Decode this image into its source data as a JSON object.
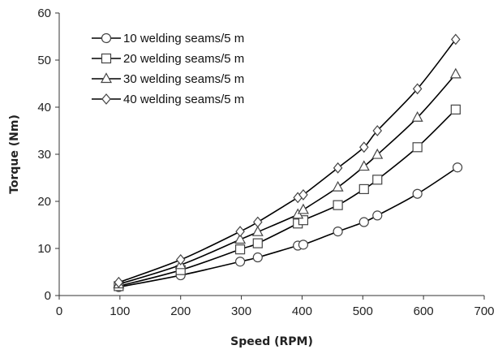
{
  "chart_data": {
    "type": "line",
    "title": "",
    "xlabel": "Speed (RPM)",
    "ylabel": "Torque (Nm)",
    "xlim": [
      0,
      700
    ],
    "ylim": [
      0,
      60
    ],
    "xticks": [
      "0",
      "100",
      "200",
      "300",
      "400",
      "500",
      "600",
      "700"
    ],
    "yticks": [
      "0",
      "10",
      "20",
      "30",
      "40",
      "50",
      "60"
    ],
    "grid": false,
    "legend_position": "top-left",
    "series": [
      {
        "name": "10 welding seams/5 m",
        "marker": "circle",
        "x": [
          98,
          200,
          298,
          327,
          393,
          402,
          459,
          502,
          524,
          590,
          656
        ],
        "y": [
          1.8,
          4.3,
          7.2,
          8.1,
          10.6,
          10.8,
          13.6,
          15.6,
          17.0,
          21.6,
          27.2
        ]
      },
      {
        "name": "20 welding seams/5 m",
        "marker": "square",
        "x": [
          98,
          200,
          298,
          327,
          393,
          402,
          459,
          502,
          524,
          590,
          653
        ],
        "y": [
          2.0,
          5.4,
          9.8,
          11.1,
          15.3,
          16.0,
          19.2,
          22.6,
          24.6,
          31.5,
          39.5
        ]
      },
      {
        "name": "30 welding seams/5 m",
        "marker": "triangle",
        "x": [
          98,
          200,
          298,
          327,
          393,
          402,
          459,
          502,
          524,
          590,
          653
        ],
        "y": [
          2.4,
          6.5,
          11.9,
          13.5,
          17.2,
          18.2,
          23.0,
          27.4,
          29.9,
          37.8,
          47.0
        ]
      },
      {
        "name": "40 welding seams/5 m",
        "marker": "diamond",
        "x": [
          98,
          200,
          298,
          327,
          393,
          402,
          459,
          502,
          524,
          590,
          653
        ],
        "y": [
          2.8,
          7.6,
          13.6,
          15.6,
          20.8,
          21.4,
          27.1,
          31.5,
          35.0,
          43.9,
          54.4
        ]
      }
    ],
    "colors": {
      "line": "#000000",
      "marker_stroke": "#444444",
      "marker_fill": "#ffffff"
    }
  }
}
